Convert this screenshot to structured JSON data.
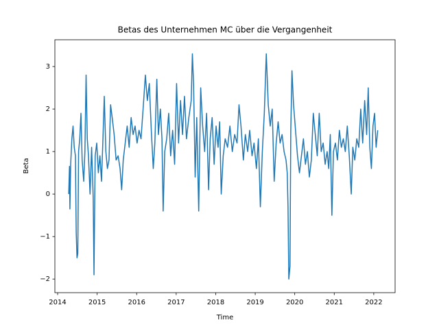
{
  "chart_data": {
    "type": "line",
    "title": "Betas des Unternehmen MC über die Vergangenheit",
    "xlabel": "Time",
    "ylabel": "Beta",
    "color": "#1f77b4",
    "x": [
      2014.28,
      2014.3,
      2014.31,
      2014.33,
      2014.36,
      2014.39,
      2014.42,
      2014.45,
      2014.47,
      2014.49,
      2014.51,
      2014.53,
      2014.56,
      2014.59,
      2014.62,
      2014.66,
      2014.69,
      2014.72,
      2014.75,
      2014.78,
      2014.82,
      2014.86,
      2014.9,
      2014.92,
      2014.95,
      2014.99,
      2015.03,
      2015.07,
      2015.11,
      2015.15,
      2015.18,
      2015.22,
      2015.26,
      2015.3,
      2015.34,
      2015.38,
      2015.43,
      2015.48,
      2015.53,
      2015.58,
      2015.62,
      2015.66,
      2015.71,
      2015.76,
      2015.81,
      2015.86,
      2015.91,
      2015.96,
      2016.01,
      2016.06,
      2016.11,
      2016.17,
      2016.22,
      2016.27,
      2016.32,
      2016.37,
      2016.42,
      2016.46,
      2016.51,
      2016.55,
      2016.6,
      2016.64,
      2016.67,
      2016.71,
      2016.76,
      2016.81,
      2016.86,
      2016.91,
      2016.96,
      2017.01,
      2017.06,
      2017.11,
      2017.16,
      2017.21,
      2017.26,
      2017.32,
      2017.38,
      2017.41,
      2017.44,
      2017.48,
      2017.52,
      2017.57,
      2017.62,
      2017.67,
      2017.72,
      2017.77,
      2017.82,
      2017.86,
      2017.91,
      2017.96,
      2018.01,
      2018.06,
      2018.1,
      2018.14,
      2018.19,
      2018.24,
      2018.3,
      2018.36,
      2018.42,
      2018.48,
      2018.54,
      2018.59,
      2018.64,
      2018.7,
      2018.75,
      2018.81,
      2018.86,
      2018.92,
      2018.97,
      2019.03,
      2019.08,
      2019.13,
      2019.18,
      2019.23,
      2019.28,
      2019.33,
      2019.38,
      2019.43,
      2019.48,
      2019.53,
      2019.58,
      2019.63,
      2019.68,
      2019.73,
      2019.78,
      2019.81,
      2019.83,
      2019.85,
      2019.88,
      2019.9,
      2019.93,
      2019.97,
      2020.02,
      2020.07,
      2020.12,
      2020.17,
      2020.22,
      2020.27,
      2020.32,
      2020.37,
      2020.42,
      2020.47,
      2020.52,
      2020.57,
      2020.62,
      2020.67,
      2020.72,
      2020.77,
      2020.82,
      2020.86,
      2020.9,
      2020.94,
      2020.98,
      2021.03,
      2021.08,
      2021.13,
      2021.18,
      2021.23,
      2021.28,
      2021.33,
      2021.38,
      2021.43,
      2021.47,
      2021.52,
      2021.57,
      2021.62,
      2021.67,
      2021.72,
      2021.77,
      2021.82,
      2021.86,
      2021.9,
      2021.94,
      2021.98,
      2022.02,
      2022.06,
      2022.1
    ],
    "values": [
      0.0,
      0.65,
      -0.35,
      0.7,
      1.3,
      1.6,
      1.1,
      0.9,
      -0.9,
      -1.5,
      -1.4,
      1.0,
      1.3,
      1.9,
      0.8,
      0.3,
      1.0,
      2.8,
      1.3,
      0.9,
      0.0,
      1.1,
      -0.1,
      -1.9,
      0.9,
      1.2,
      0.5,
      0.9,
      0.3,
      1.4,
      2.3,
      1.0,
      0.6,
      0.8,
      2.1,
      1.8,
      1.4,
      0.8,
      0.9,
      0.6,
      0.1,
      0.8,
      1.2,
      1.6,
      1.1,
      1.8,
      1.4,
      1.6,
      1.2,
      1.5,
      1.3,
      2.1,
      2.8,
      2.2,
      2.6,
      1.5,
      0.6,
      1.2,
      2.7,
      1.4,
      2.0,
      1.3,
      -0.4,
      1.0,
      1.3,
      1.9,
      0.9,
      1.5,
      0.7,
      2.6,
      1.2,
      2.2,
      1.4,
      2.3,
      1.3,
      1.8,
      2.2,
      3.3,
      2.6,
      0.4,
      1.8,
      -0.4,
      2.5,
      1.6,
      1.0,
      1.9,
      0.1,
      1.3,
      1.8,
      0.7,
      1.6,
      1.1,
      1.7,
      0.0,
      0.9,
      1.3,
      1.1,
      1.6,
      1.0,
      1.4,
      1.2,
      2.1,
      1.6,
      0.8,
      1.4,
      1.0,
      1.5,
      0.9,
      1.2,
      0.6,
      1.3,
      -0.3,
      1.0,
      1.9,
      3.3,
      2.1,
      1.6,
      2.0,
      0.3,
      1.2,
      1.7,
      1.2,
      1.4,
      1.0,
      0.8,
      0.5,
      -0.3,
      -2.0,
      -1.7,
      1.5,
      2.9,
      2.1,
      1.5,
      0.9,
      0.5,
      0.9,
      1.3,
      0.7,
      1.0,
      0.4,
      0.8,
      1.9,
      1.4,
      0.9,
      1.9,
      1.0,
      1.2,
      0.7,
      1.0,
      0.6,
      1.4,
      -0.5,
      1.0,
      1.2,
      0.8,
      1.5,
      1.1,
      1.3,
      1.0,
      1.6,
      0.9,
      0.0,
      1.1,
      0.8,
      1.3,
      1.1,
      2.0,
      1.2,
      2.2,
      1.4,
      2.5,
      1.1,
      0.6,
      1.6,
      1.9,
      1.1,
      1.5
    ],
    "xlim": [
      2013.93,
      2022.54
    ],
    "xticks": [
      2014,
      2015,
      2016,
      2017,
      2018,
      2019,
      2020,
      2021,
      2022
    ],
    "ylim": [
      -2.32,
      3.63
    ],
    "yticks": [
      {
        "value": -2,
        "label": "−2"
      },
      {
        "value": -1,
        "label": "−1"
      },
      0,
      1,
      2,
      3
    ]
  }
}
